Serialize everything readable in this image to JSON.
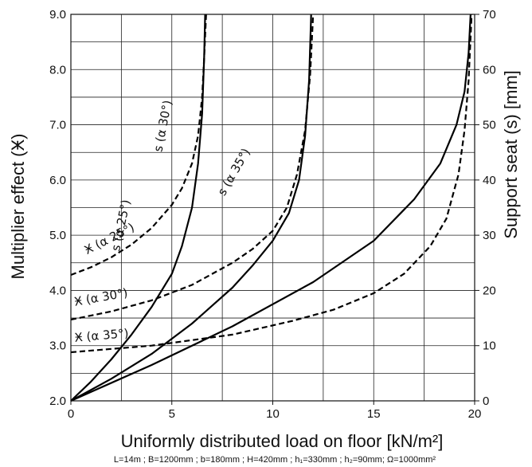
{
  "chart_data": {
    "type": "line",
    "xlabel": "Uniformly distributed load on floor [kN/m²]",
    "ylabel": "Multiplier effect (Ӿ)",
    "y2label": "Support seat (s) [mm]",
    "note": "L=14m ; B=1200mm ; b=180mm ; H=420mm ; h₁=330mm ; h₂=90mm; Ω=1000mm²",
    "xlim": [
      0,
      20
    ],
    "ylim": [
      2.0,
      9.0
    ],
    "y2lim": [
      0,
      70
    ],
    "x_ticks": [
      "0",
      "5",
      "10",
      "15",
      "20"
    ],
    "y_ticks": [
      "2.0",
      "3.0",
      "4.0",
      "5.0",
      "6.0",
      "7.0",
      "8.0",
      "9.0"
    ],
    "y2_ticks": [
      "0",
      "10",
      "20",
      "30",
      "40",
      "50",
      "60",
      "70"
    ],
    "grid": true,
    "series": [
      {
        "name": "Ӿ (α 25°)",
        "axis": "left",
        "style": "dashed",
        "x": [
          0,
          1,
          2,
          3,
          4,
          5,
          5.5,
          6,
          6.3,
          6.5,
          6.6,
          6.7
        ],
        "y": [
          4.28,
          4.42,
          4.6,
          4.83,
          5.13,
          5.55,
          5.85,
          6.3,
          6.8,
          7.5,
          8.2,
          9.0
        ]
      },
      {
        "name": "Ӿ (α 30°)",
        "axis": "left",
        "style": "dashed",
        "x": [
          0,
          2,
          4,
          6,
          8,
          9,
          10,
          10.7,
          11.2,
          11.6,
          11.85,
          12.0
        ],
        "y": [
          3.47,
          3.62,
          3.82,
          4.1,
          4.5,
          4.75,
          5.08,
          5.5,
          6.1,
          6.9,
          7.9,
          9.0
        ]
      },
      {
        "name": "Ӿ (α 35°)",
        "axis": "left",
        "style": "dashed",
        "x": [
          0,
          4,
          8,
          11,
          13,
          15,
          16.5,
          17.8,
          18.6,
          19.2,
          19.5,
          19.7,
          19.85
        ],
        "y": [
          2.88,
          3.0,
          3.2,
          3.45,
          3.65,
          3.95,
          4.3,
          4.8,
          5.3,
          6.1,
          6.9,
          7.8,
          9.0
        ]
      },
      {
        "name": "s (α 25°)",
        "axis": "right",
        "style": "solid",
        "x": [
          0,
          1,
          2,
          3,
          4,
          5,
          5.5,
          6,
          6.3,
          6.5,
          6.6,
          6.65
        ],
        "y": [
          0,
          3.5,
          7.5,
          12,
          17,
          23,
          28,
          35,
          43,
          52,
          62,
          70
        ]
      },
      {
        "name": "s (α 30°)",
        "axis": "right",
        "style": "solid",
        "x": [
          0,
          2,
          4,
          6,
          8,
          9,
          10,
          10.8,
          11.3,
          11.6,
          11.8,
          11.9
        ],
        "y": [
          0,
          4,
          8.5,
          14,
          20.5,
          24.5,
          29,
          34,
          40,
          48,
          58,
          70
        ]
      },
      {
        "name": "s (α 35°)",
        "axis": "right",
        "style": "solid",
        "x": [
          0,
          4,
          8,
          12,
          15,
          17,
          18.3,
          19.1,
          19.5,
          19.7,
          19.8
        ],
        "y": [
          0,
          6.5,
          13.5,
          21.5,
          29,
          36.5,
          43,
          50,
          56,
          63,
          70
        ]
      }
    ],
    "annotations": [
      {
        "text": "Ӿ (α 25°)",
        "x": 0.8,
        "y": 4.65,
        "rotate": -27,
        "axis": "left"
      },
      {
        "text": "Ӿ (α 30°)",
        "x": 0.2,
        "y": 3.72,
        "rotate": -10,
        "axis": "left"
      },
      {
        "text": "Ӿ (α 35°)",
        "x": 0.2,
        "y": 3.07,
        "rotate": -5,
        "axis": "left"
      },
      {
        "text": "s (α 25°)",
        "x": 2.4,
        "y": 27.0,
        "rotate": -78,
        "axis": "right"
      },
      {
        "text": "s (α 30°)",
        "x": 4.5,
        "y": 45.0,
        "rotate": -79,
        "axis": "right"
      },
      {
        "text": "s (α 35°)",
        "x": 7.6,
        "y": 37.0,
        "rotate": -60,
        "axis": "right"
      }
    ]
  }
}
